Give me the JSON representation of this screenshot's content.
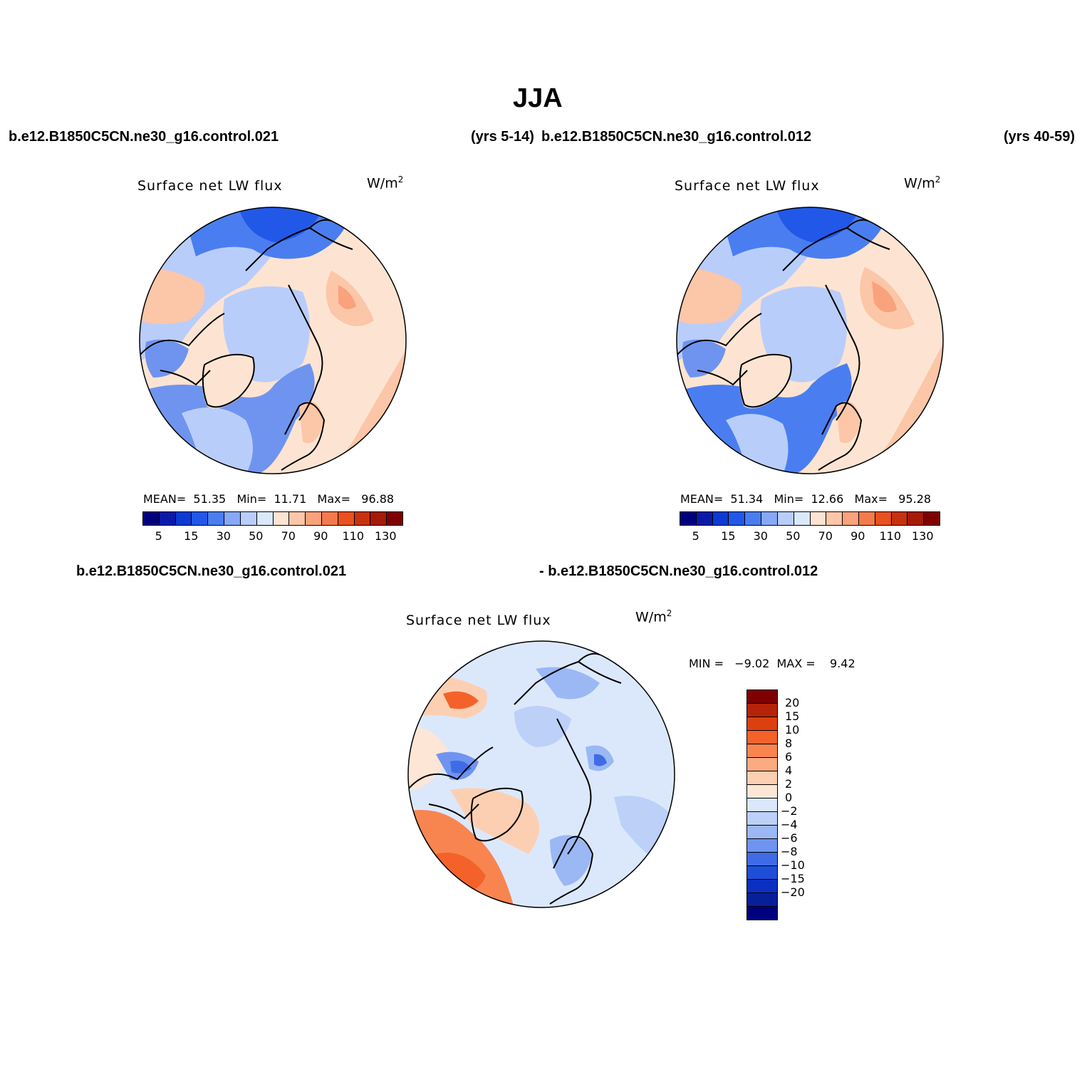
{
  "main_title": "JJA",
  "top_left_case": "b.e12.B1850C5CN.ne30_g16.control.021",
  "top_left_years": "(yrs 5-14)",
  "top_right_case": "b.e12.B1850C5CN.ne30_g16.control.012",
  "top_right_years": "(yrs 40-59)",
  "diff_case_a": "b.e12.B1850C5CN.ne30_g16.control.021",
  "diff_case_b": "- b.e12.B1850C5CN.ne30_g16.control.012",
  "panels": [
    {
      "title": "Surface net LW flux",
      "units": "W/m",
      "units_exp": "2",
      "mean_label": "MEAN=",
      "mean": "51.35",
      "min_label": "Min=",
      "min": "11.71",
      "max_label": "Max=",
      "max": "96.88"
    },
    {
      "title": "Surface net LW flux",
      "units": "W/m",
      "units_exp": "2",
      "mean_label": "MEAN=",
      "mean": "51.34",
      "min_label": "Min=",
      "min": "12.66",
      "max_label": "Max=",
      "max": "95.28"
    },
    {
      "title": "Surface net LW flux",
      "units": "W/m",
      "units_exp": "2",
      "minmax_text": "MIN =   −9.02  MAX =    9.42"
    }
  ],
  "colorbar_abs": {
    "colors": [
      "#00007f",
      "#0a1aa8",
      "#0d3ad2",
      "#2258e8",
      "#4a7ef0",
      "#86a8f6",
      "#b9cdfa",
      "#dbe8fc",
      "#fde4d2",
      "#fcc6a8",
      "#f9a27c",
      "#f47a4e",
      "#ea5020",
      "#c63210",
      "#a51b06",
      "#7f0000"
    ],
    "labels": [
      "5",
      "15",
      "30",
      "50",
      "70",
      "90",
      "110",
      "130"
    ]
  },
  "colorbar_diff": {
    "colors": [
      "#7f0000",
      "#b52408",
      "#dd4010",
      "#f4622a",
      "#f88550",
      "#fbaa82",
      "#fdcfb2",
      "#fde6d6",
      "#dbe8fc",
      "#bcd0f8",
      "#9bb8f4",
      "#6f94ef",
      "#3f6ce6",
      "#1e4ed8",
      "#0b2fc0",
      "#081f9a",
      "#00007f"
    ],
    "labels": [
      "20",
      "15",
      "10",
      "8",
      "6",
      "4",
      "2",
      "0",
      "−2",
      "−4",
      "−6",
      "−8",
      "−10",
      "−15",
      "−20"
    ]
  },
  "map_colors": {
    "deep_blue": "#3f6ce6",
    "mid_blue": "#6f94ef",
    "light_blue": "#b9cdfa",
    "pale_blue": "#dbe8fc",
    "pale_orange": "#fde4d2",
    "light_orange": "#fcc6a8",
    "orange": "#f47a4e",
    "dark_red": "#a51b06"
  }
}
